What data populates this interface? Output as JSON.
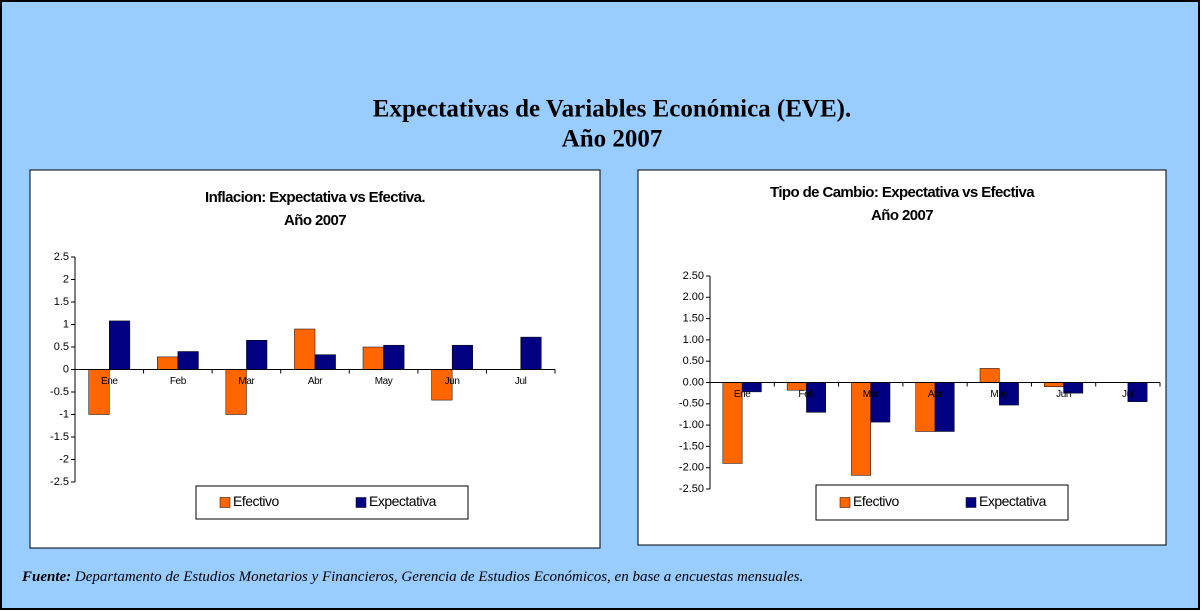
{
  "header": {
    "title": "Expectativas de Variables Económica (EVE).",
    "year": "Año 2007"
  },
  "source": {
    "label": "Fuente:",
    "text": "Departamento de Estudios Monetarios y Financieros, Gerencia de Estudios Económicos, en base a encuestas  mensuales."
  },
  "chart_data": [
    {
      "type": "bar",
      "title": "Inflacion: Expectativa vs Efectiva.",
      "subtitle": "Año 2007",
      "categories": [
        "Ene",
        "Feb",
        "Mar",
        "Abr",
        "May",
        "Jun",
        "Jul"
      ],
      "series": [
        {
          "name": "Efectivo",
          "color": "#ff6600",
          "values": [
            -1.0,
            0.28,
            -1.0,
            0.9,
            0.5,
            -0.68,
            null
          ]
        },
        {
          "name": "Expectativa",
          "color": "#000080",
          "values": [
            1.08,
            0.4,
            0.65,
            0.33,
            0.54,
            0.54,
            0.72
          ]
        }
      ],
      "ylim": [
        -2.5,
        2.5
      ],
      "yticks": [
        2.5,
        2,
        1.5,
        1,
        0.5,
        0,
        -0.5,
        -1,
        -1.5,
        -2,
        -2.5
      ],
      "grid": false,
      "legend": "bottom"
    },
    {
      "type": "bar",
      "title": "Tipo de Cambio: Expectativa vs Efectiva",
      "subtitle": "Año 2007",
      "categories": [
        "Ene",
        "Feb",
        "Mar",
        "Abr",
        "May",
        "Jun",
        "Jul"
      ],
      "series": [
        {
          "name": "Efectivo",
          "color": "#ff6600",
          "values": [
            -1.9,
            -0.18,
            -2.18,
            -1.15,
            0.33,
            -0.1,
            null
          ]
        },
        {
          "name": "Expectativa",
          "color": "#000080",
          "values": [
            -0.22,
            -0.7,
            -0.93,
            -1.15,
            -0.53,
            -0.25,
            -0.45
          ]
        }
      ],
      "ylim": [
        -2.5,
        2.5
      ],
      "yticks": [
        {
          "value": 2.5,
          "label": "2.50"
        },
        {
          "value": 2,
          "label": "2.00"
        },
        {
          "value": 1.5,
          "label": "1.50"
        },
        {
          "value": 1,
          "label": "1.00"
        },
        {
          "value": 0.5,
          "label": "0.50"
        },
        {
          "value": 0,
          "label": "0.00"
        },
        {
          "value": -0.5,
          "label": "-0.50"
        },
        {
          "value": -1,
          "label": "-1.00"
        },
        {
          "value": -1.5,
          "label": "-1.50"
        },
        {
          "value": -2,
          "label": "-2.00"
        },
        {
          "value": -2.5,
          "label": "-2.50"
        }
      ],
      "grid": false,
      "legend": "bottom"
    }
  ]
}
